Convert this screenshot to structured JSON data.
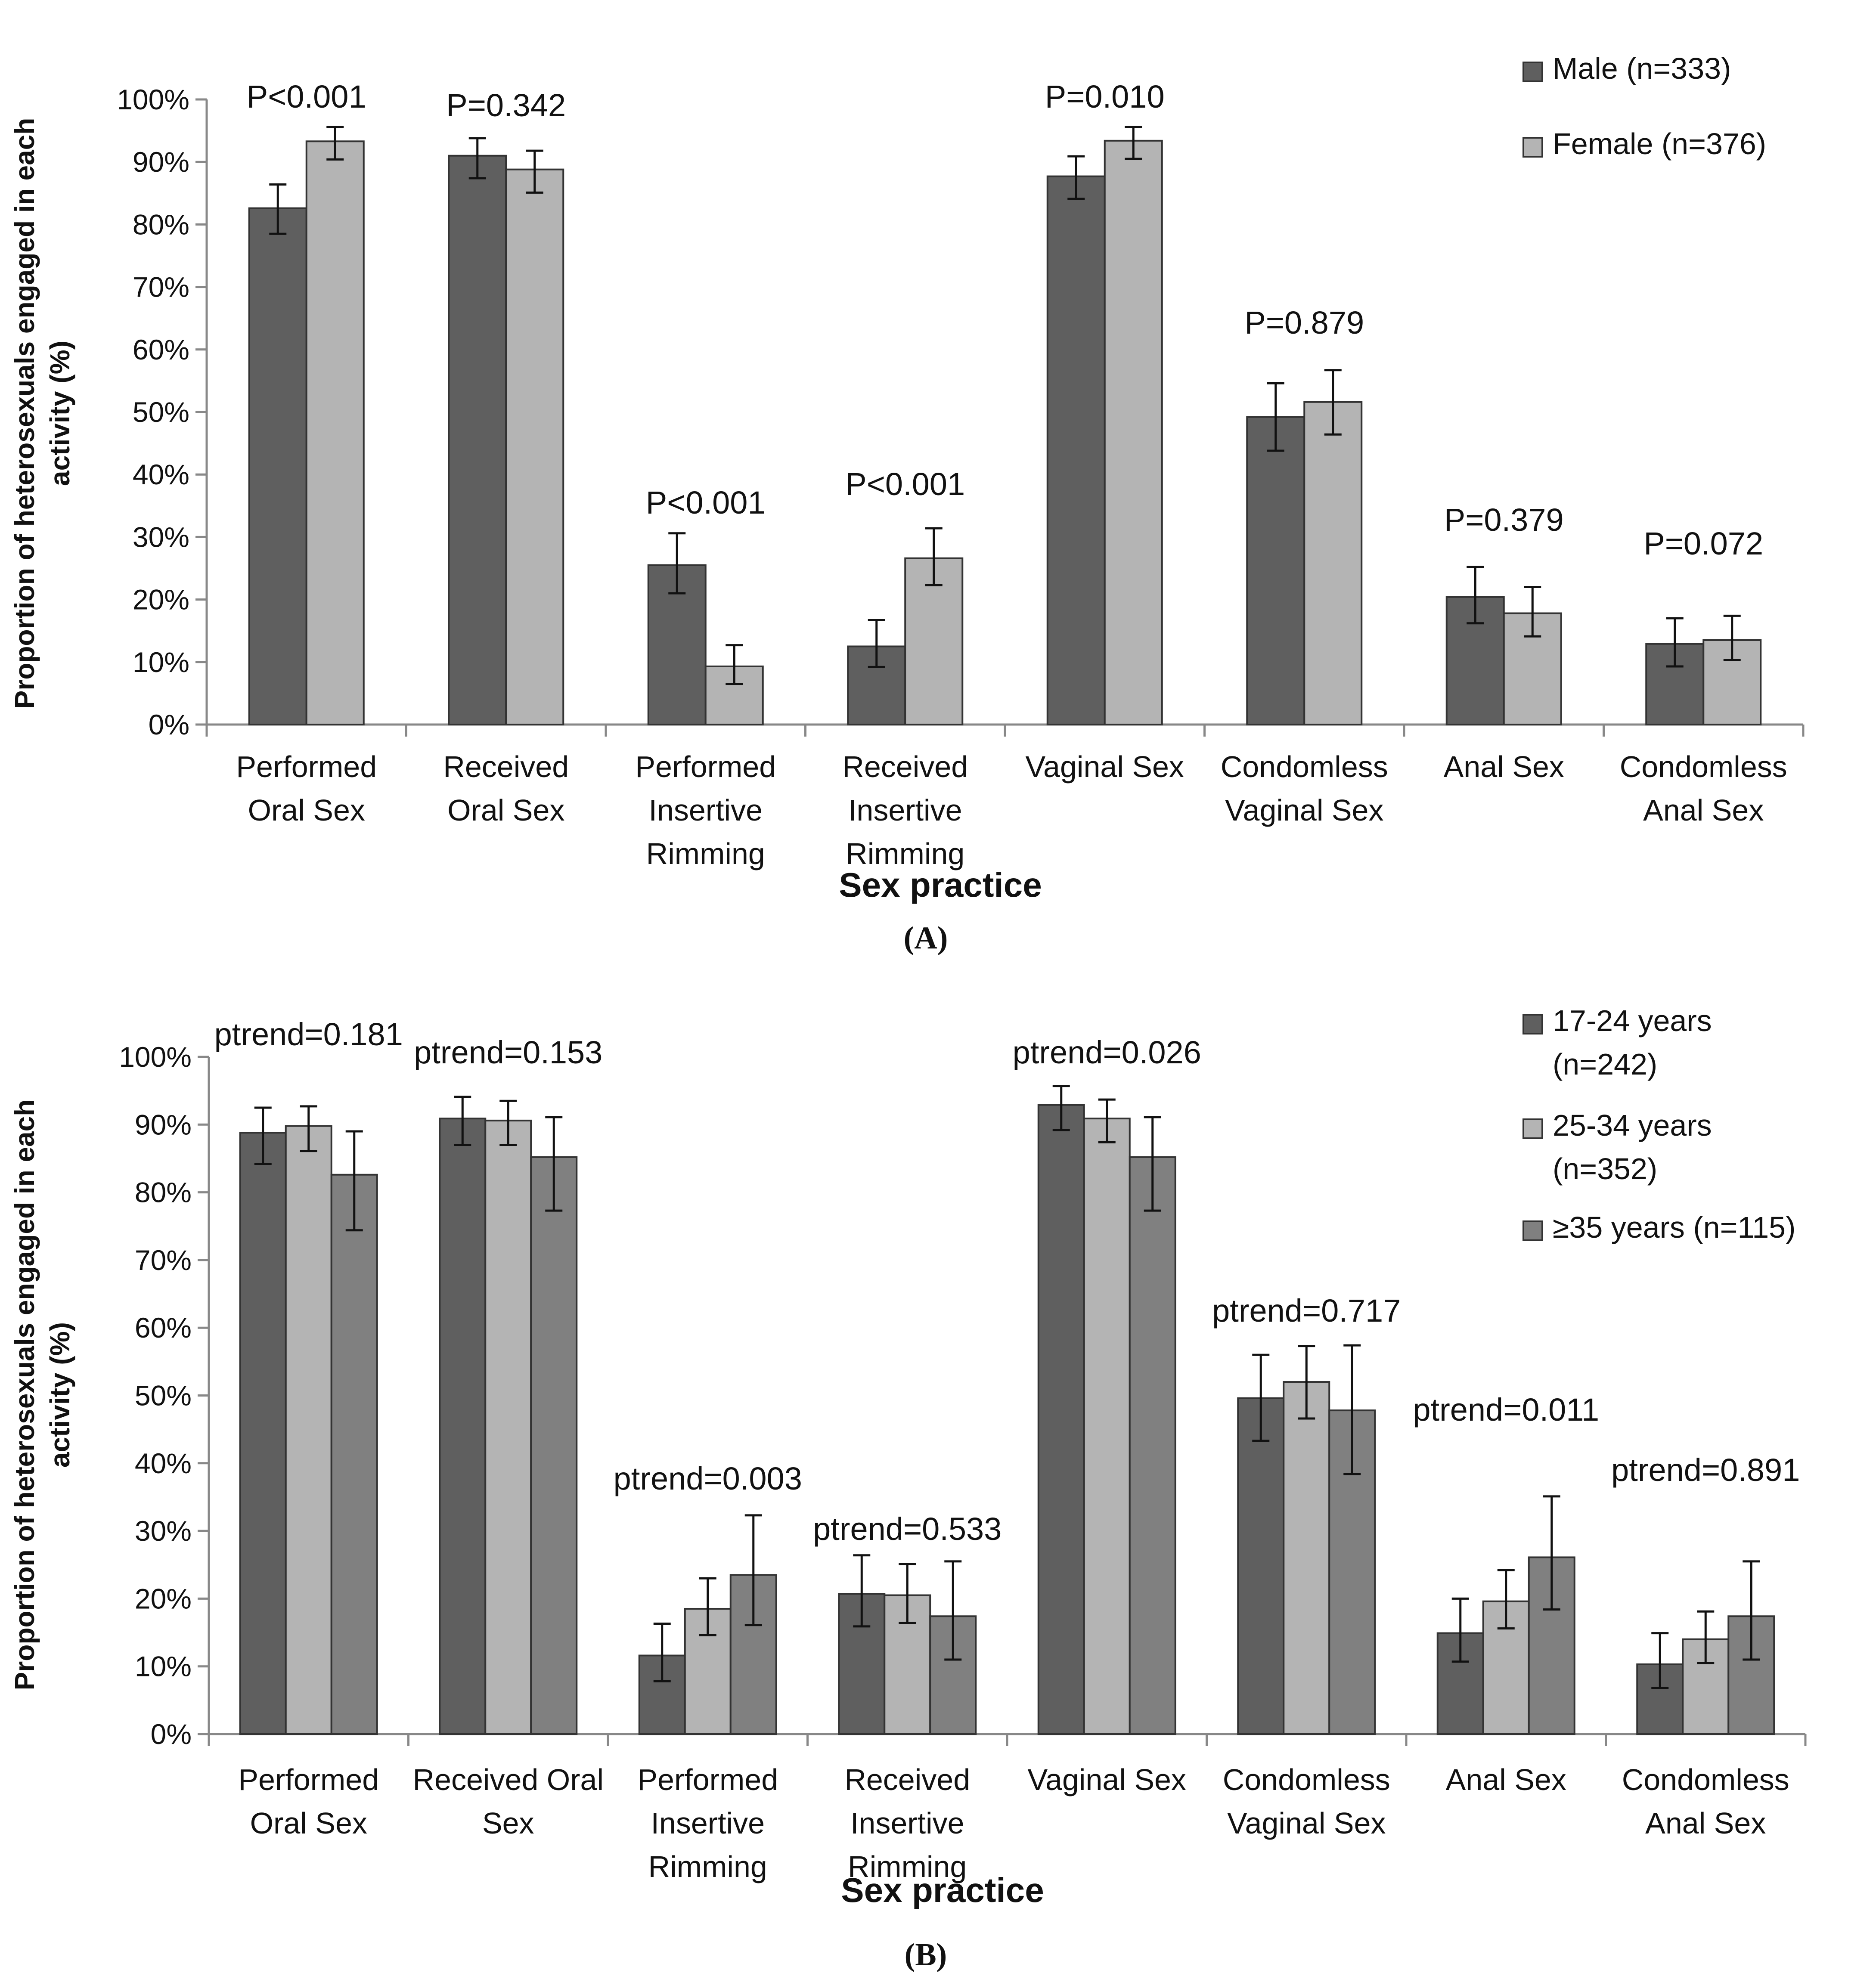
{
  "chart_data": [
    {
      "panel": "A",
      "type": "bar",
      "categories": [
        [
          "Performed",
          "Oral Sex"
        ],
        [
          "Received",
          "Oral Sex"
        ],
        [
          "Performed",
          "Insertive",
          "Rimming"
        ],
        [
          "Received",
          "Insertive",
          "Rimming"
        ],
        [
          "Vaginal Sex"
        ],
        [
          "Condomless",
          "Vaginal Sex"
        ],
        [
          "Anal Sex"
        ],
        [
          "Condomless",
          "Anal Sex"
        ]
      ],
      "series": [
        {
          "name": "Male (n=333)",
          "color": "#5f5f5f",
          "values": [
            82.6,
            91.0,
            25.5,
            12.5,
            87.7,
            49.2,
            20.4,
            12.9
          ],
          "err_low": [
            78.5,
            87.4,
            21.0,
            9.2,
            84.1,
            43.8,
            16.2,
            9.3
          ],
          "err_high": [
            86.4,
            93.8,
            30.6,
            16.7,
            90.9,
            54.6,
            25.2,
            17.0
          ]
        },
        {
          "name": "Female (n=376)",
          "color": "#b4b4b4",
          "values": [
            93.3,
            88.8,
            9.3,
            26.6,
            93.4,
            51.6,
            17.8,
            13.5
          ],
          "err_low": [
            90.4,
            85.1,
            6.5,
            22.3,
            90.5,
            46.4,
            14.1,
            10.3
          ],
          "err_high": [
            95.6,
            91.8,
            12.7,
            31.4,
            95.6,
            56.7,
            22.0,
            17.4
          ]
        }
      ],
      "annotations": [
        "P<0.001",
        "P=0.342",
        "P<0.001",
        "P<0.001",
        "P=0.010",
        "P=0.879",
        "P=0.379",
        "P=0.072"
      ],
      "ylabel": [
        "Proportion of heterosexuals engaged in each",
        "activity (%)"
      ],
      "xlabel": "Sex practice",
      "yticks": [
        "0%",
        "10%",
        "20%",
        "30%",
        "40%",
        "50%",
        "60%",
        "70%",
        "80%",
        "90%",
        "100%"
      ],
      "ylim": [
        0,
        100
      ],
      "legend_position": "top-right",
      "panel_label": "(A)"
    },
    {
      "panel": "B",
      "type": "bar",
      "categories": [
        [
          "Performed",
          "Oral Sex"
        ],
        [
          "Received Oral",
          "Sex"
        ],
        [
          "Performed",
          "Insertive",
          "Rimming"
        ],
        [
          "Received",
          "Insertive",
          "Rimming"
        ],
        [
          "Vaginal Sex"
        ],
        [
          "Condomless",
          "Vaginal Sex"
        ],
        [
          "Anal Sex"
        ],
        [
          "Condomless",
          "Anal Sex"
        ]
      ],
      "series": [
        {
          "name": [
            "17-24 years",
            "(n=242)"
          ],
          "color": "#5f5f5f",
          "values": [
            88.8,
            90.9,
            11.6,
            20.7,
            92.9,
            49.6,
            14.9,
            10.3
          ],
          "err_low": [
            84.2,
            87.0,
            7.8,
            15.9,
            89.2,
            43.3,
            10.7,
            6.8
          ],
          "err_high": [
            92.5,
            94.1,
            16.3,
            26.4,
            95.7,
            56.0,
            20.0,
            14.9
          ]
        },
        {
          "name": [
            "25-34 years",
            "(n=352)"
          ],
          "color": "#b4b4b4",
          "values": [
            89.8,
            90.6,
            18.5,
            20.5,
            90.9,
            52.0,
            19.6,
            14.0
          ],
          "err_low": [
            86.1,
            87.0,
            14.6,
            16.4,
            87.4,
            46.6,
            15.6,
            10.5
          ],
          "err_high": [
            92.7,
            93.5,
            23.0,
            25.1,
            93.7,
            57.3,
            24.2,
            18.1
          ]
        },
        {
          "name": [
            "≥35 years (n=115)"
          ],
          "color": "#808080",
          "values": [
            82.6,
            85.2,
            23.5,
            17.4,
            85.2,
            47.8,
            26.1,
            17.4
          ],
          "err_low": [
            74.4,
            77.3,
            16.1,
            11.0,
            77.3,
            38.4,
            18.4,
            11.0
          ],
          "err_high": [
            89.0,
            91.1,
            32.3,
            25.5,
            91.1,
            57.4,
            35.1,
            25.5
          ]
        }
      ],
      "annotations": [
        "ptrend=0.181",
        "ptrend=0.153",
        "ptrend=0.003",
        "ptrend=0.533",
        "ptrend=0.026",
        "ptrend=0.717",
        "ptrend=0.011",
        "ptrend=0.891"
      ],
      "ylabel": [
        "Proportion of heterosexuals engaged in each",
        "activity (%)"
      ],
      "xlabel": "Sex practice",
      "yticks": [
        "0%",
        "10%",
        "20%",
        "30%",
        "40%",
        "50%",
        "60%",
        "70%",
        "80%",
        "90%",
        "100%"
      ],
      "ylim": [
        0,
        100
      ],
      "legend_position": "top-right",
      "panel_label": "(B)"
    }
  ]
}
